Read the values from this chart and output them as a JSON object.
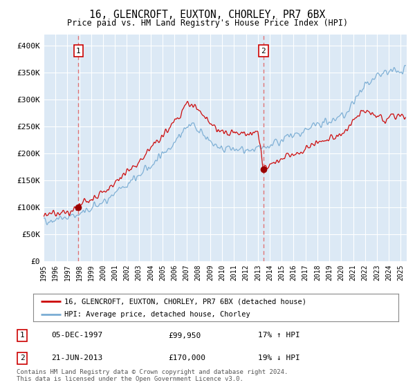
{
  "title": "16, GLENCROFT, EUXTON, CHORLEY, PR7 6BX",
  "subtitle": "Price paid vs. HM Land Registry's House Price Index (HPI)",
  "xlim_start": 1995.0,
  "xlim_end": 2025.5,
  "ylim_min": 0,
  "ylim_max": 420000,
  "yticks": [
    0,
    50000,
    100000,
    150000,
    200000,
    250000,
    300000,
    350000,
    400000
  ],
  "ytick_labels": [
    "£0",
    "£50K",
    "£100K",
    "£150K",
    "£200K",
    "£250K",
    "£300K",
    "£350K",
    "£400K"
  ],
  "xticks": [
    1995,
    1996,
    1997,
    1998,
    1999,
    2000,
    2001,
    2002,
    2003,
    2004,
    2005,
    2006,
    2007,
    2008,
    2009,
    2010,
    2011,
    2012,
    2013,
    2014,
    2015,
    2016,
    2017,
    2018,
    2019,
    2020,
    2021,
    2022,
    2023,
    2024,
    2025
  ],
  "plot_bg_color": "#dce9f5",
  "grid_color": "#ffffff",
  "transaction1": {
    "date_num": 1997.92,
    "price": 99950
  },
  "transaction2": {
    "date_num": 2013.47,
    "price": 170000
  },
  "legend_line1": "16, GLENCROFT, EUXTON, CHORLEY, PR7 6BX (detached house)",
  "legend_line2": "HPI: Average price, detached house, Chorley",
  "table_rows": [
    {
      "num": "1",
      "date": "05-DEC-1997",
      "price": "£99,950",
      "hpi": "17% ↑ HPI"
    },
    {
      "num": "2",
      "date": "21-JUN-2013",
      "price": "£170,000",
      "hpi": "19% ↓ HPI"
    }
  ],
  "footer": "Contains HM Land Registry data © Crown copyright and database right 2024.\nThis data is licensed under the Open Government Licence v3.0.",
  "line_color_red": "#cc0000",
  "line_color_blue": "#7aadd4",
  "marker_color_red": "#990000",
  "dashed_line_color": "#e06060",
  "hpi_knots_x": [
    1995,
    1996,
    1997,
    1998,
    1999,
    2000,
    2001,
    2002,
    2003,
    2004,
    2005,
    2006,
    2007,
    2007.5,
    2008,
    2008.5,
    2009,
    2009.5,
    2010,
    2010.5,
    2011,
    2011.5,
    2012,
    2012.5,
    2013,
    2013.5,
    2014,
    2015,
    2016,
    2017,
    2018,
    2019,
    2020,
    2020.5,
    2021,
    2021.5,
    2022,
    2022.5,
    2023,
    2023.5,
    2024,
    2024.5,
    2025
  ],
  "hpi_knots_y": [
    75000,
    78000,
    82000,
    87000,
    96000,
    110000,
    125000,
    142000,
    158000,
    178000,
    200000,
    222000,
    248000,
    252000,
    245000,
    235000,
    222000,
    215000,
    210000,
    208000,
    207000,
    206000,
    205000,
    204000,
    205000,
    208000,
    215000,
    225000,
    232000,
    242000,
    252000,
    260000,
    268000,
    275000,
    295000,
    310000,
    328000,
    338000,
    342000,
    346000,
    350000,
    352000,
    350000
  ],
  "prop_knots_x": [
    1995,
    1996,
    1997,
    1997.92,
    1998,
    1999,
    2000,
    2001,
    2002,
    2003,
    2004,
    2005,
    2006,
    2007,
    2007.5,
    2008,
    2008.5,
    2009,
    2009.5,
    2010,
    2010.5,
    2011,
    2011.5,
    2012,
    2012.5,
    2013,
    2013.47,
    2013.5,
    2014,
    2015,
    2016,
    2017,
    2018,
    2019,
    2020,
    2020.5,
    2021,
    2021.5,
    2022,
    2022.5,
    2023,
    2023.5,
    2024,
    2024.5,
    2025
  ],
  "prop_knots_y": [
    85000,
    88000,
    92000,
    99950,
    103000,
    113000,
    128000,
    147000,
    165000,
    185000,
    207000,
    232000,
    258000,
    290000,
    293000,
    282000,
    270000,
    255000,
    246000,
    242000,
    240000,
    239000,
    238000,
    237000,
    238000,
    240000,
    170000,
    172000,
    178000,
    188000,
    196000,
    208000,
    220000,
    228000,
    236000,
    245000,
    262000,
    272000,
    278000,
    272000,
    268000,
    265000,
    265000,
    268000,
    268000
  ]
}
